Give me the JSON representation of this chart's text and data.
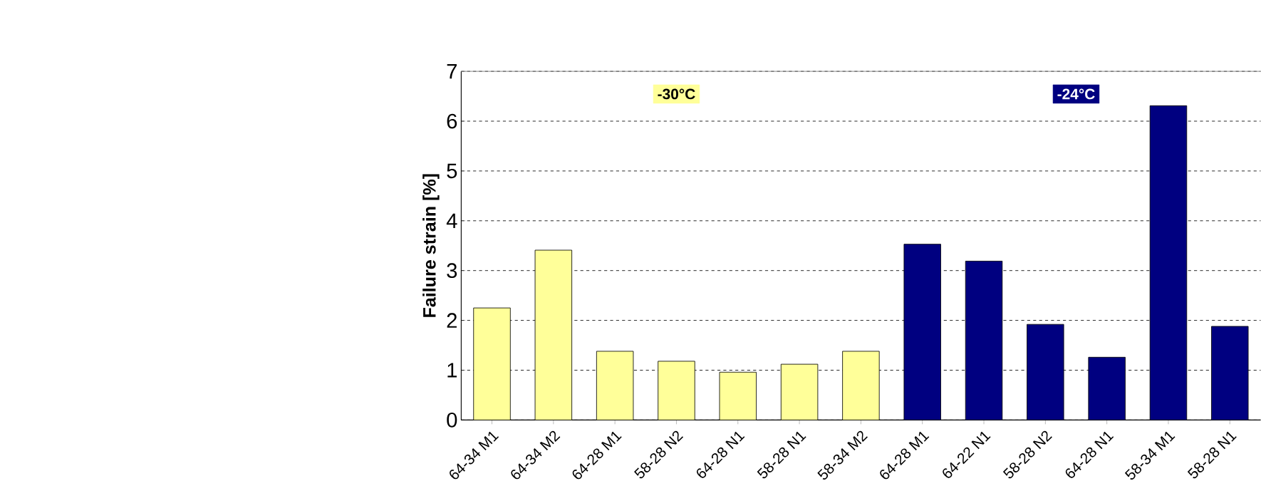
{
  "chart_data": {
    "type": "bar",
    "ylabel": "Failure strain [%]",
    "categories": [
      "64-34 M1",
      "64-34 M2",
      "64-28 M1",
      "58-28 N2",
      "64-28 N1",
      "58-28 N1",
      "58-34 M2",
      "64-28 M1",
      "64-22 N1",
      "58-28 N2",
      "64-28 N1",
      "58-34 M1",
      "58-28 N1"
    ],
    "series": [
      {
        "name": "-30°C",
        "color": "#ffff99",
        "values": [
          2.25,
          3.41,
          1.38,
          1.18,
          0.96,
          1.12,
          1.38,
          null,
          null,
          null,
          null,
          null,
          null
        ]
      },
      {
        "name": "-24°C",
        "color": "#000080",
        "values": [
          null,
          null,
          null,
          null,
          null,
          null,
          null,
          3.53,
          3.19,
          1.92,
          1.26,
          6.31,
          1.88
        ]
      }
    ],
    "ylim": [
      0,
      7
    ],
    "yticks": [
      0,
      1,
      2,
      3,
      4,
      5,
      6,
      7
    ],
    "grid": "y"
  }
}
